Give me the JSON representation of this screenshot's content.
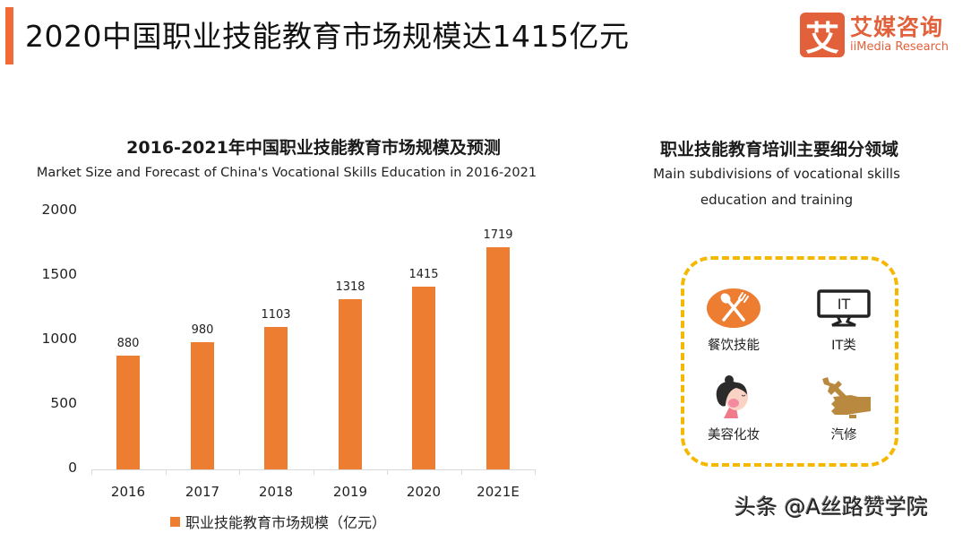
{
  "header": {
    "title": "2020中国职业技能教育市场规模达1415亿元",
    "accent_color": "#f26a35"
  },
  "logo": {
    "badge_char": "艾",
    "name_cn": "艾媒咨询",
    "name_en": "iiMedia Research",
    "color": "#e2603a"
  },
  "chart_data": {
    "type": "bar",
    "title": "2016-2021年中国职业技能教育市场规模及预测",
    "subtitle": "Market Size and Forecast of China's Vocational Skills Education in 2016-2021",
    "categories": [
      "2016",
      "2017",
      "2018",
      "2019",
      "2020",
      "2021E"
    ],
    "series": [
      {
        "name": "职业技能教育市场规模（亿元）",
        "color": "#ed7d31",
        "values": [
          880,
          980,
          1103,
          1318,
          1415,
          1719
        ]
      }
    ],
    "value_labels": [
      "880",
      "980",
      "1103",
      "1318",
      "1415",
      "1719"
    ],
    "y_ticks": [
      "2000",
      "1500",
      "1000",
      "500",
      "0"
    ],
    "xlabel": "",
    "ylabel": "",
    "ylim": [
      0,
      2000
    ],
    "grid": false,
    "legend_position": "bottom"
  },
  "panel": {
    "title": "职业技能教育培训主要细分领域",
    "subtitle_line1": "Main subdivisions of vocational skills",
    "subtitle_line2": "education and training",
    "border_color": "#f5b800",
    "categories": [
      {
        "label": "餐饮技能",
        "icon": "catering-icon"
      },
      {
        "label": "IT类",
        "icon": "it-monitor-icon"
      },
      {
        "label": "美容化妆",
        "icon": "beauty-icon"
      },
      {
        "label": "汽修",
        "icon": "auto-repair-icon"
      }
    ]
  },
  "watermark": "头条 @A丝路赞学院"
}
